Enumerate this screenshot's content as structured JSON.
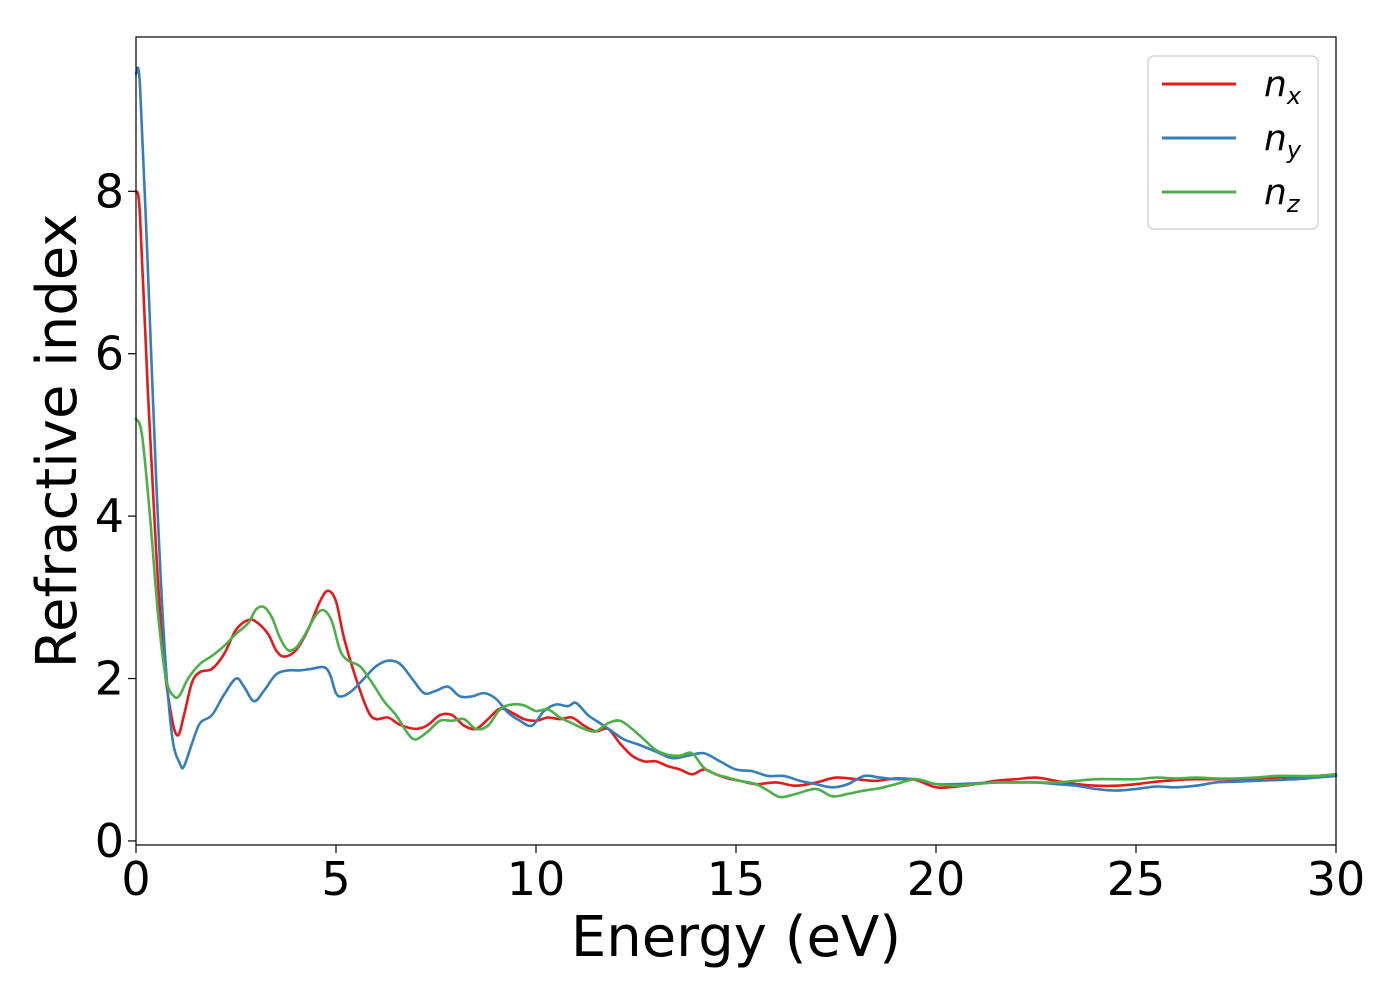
{
  "chart_data": {
    "type": "line",
    "title": "",
    "xlabel": "Energy (eV)",
    "ylabel": "Refractive index",
    "xlim": [
      0,
      30
    ],
    "ylim": [
      -0.05,
      9.9
    ],
    "xticks": [
      0,
      5,
      10,
      15,
      20,
      25,
      30
    ],
    "yticks": [
      0,
      2,
      4,
      6,
      8
    ],
    "grid": false,
    "legend_position": "top-right",
    "series": [
      {
        "name": "n_x",
        "label_base": "n",
        "label_sub": "x",
        "color": "#e41a1c",
        "points": [
          [
            0,
            8.0
          ],
          [
            0.1,
            7.7
          ],
          [
            0.3,
            5.5
          ],
          [
            0.5,
            3.6
          ],
          [
            0.7,
            2.2
          ],
          [
            0.9,
            1.5
          ],
          [
            1.05,
            1.3
          ],
          [
            1.2,
            1.55
          ],
          [
            1.4,
            1.95
          ],
          [
            1.6,
            2.08
          ],
          [
            1.9,
            2.12
          ],
          [
            2.2,
            2.3
          ],
          [
            2.5,
            2.6
          ],
          [
            2.8,
            2.72
          ],
          [
            3.0,
            2.7
          ],
          [
            3.3,
            2.55
          ],
          [
            3.5,
            2.35
          ],
          [
            3.7,
            2.27
          ],
          [
            4.0,
            2.35
          ],
          [
            4.3,
            2.6
          ],
          [
            4.6,
            2.95
          ],
          [
            4.8,
            3.08
          ],
          [
            5.0,
            2.95
          ],
          [
            5.2,
            2.5
          ],
          [
            5.5,
            2.0
          ],
          [
            5.8,
            1.6
          ],
          [
            6.0,
            1.5
          ],
          [
            6.3,
            1.52
          ],
          [
            6.6,
            1.43
          ],
          [
            7.0,
            1.38
          ],
          [
            7.3,
            1.43
          ],
          [
            7.6,
            1.55
          ],
          [
            7.9,
            1.55
          ],
          [
            8.2,
            1.42
          ],
          [
            8.5,
            1.38
          ],
          [
            8.8,
            1.5
          ],
          [
            9.1,
            1.63
          ],
          [
            9.4,
            1.58
          ],
          [
            9.7,
            1.5
          ],
          [
            10.0,
            1.48
          ],
          [
            10.3,
            1.52
          ],
          [
            10.6,
            1.5
          ],
          [
            10.9,
            1.52
          ],
          [
            11.2,
            1.42
          ],
          [
            11.5,
            1.35
          ],
          [
            11.8,
            1.38
          ],
          [
            12.1,
            1.2
          ],
          [
            12.4,
            1.05
          ],
          [
            12.7,
            0.98
          ],
          [
            13.0,
            0.98
          ],
          [
            13.3,
            0.92
          ],
          [
            13.6,
            0.88
          ],
          [
            13.9,
            0.82
          ],
          [
            14.2,
            0.88
          ],
          [
            14.5,
            0.82
          ],
          [
            14.8,
            0.77
          ],
          [
            15.1,
            0.74
          ],
          [
            15.5,
            0.7
          ],
          [
            16.0,
            0.72
          ],
          [
            16.5,
            0.68
          ],
          [
            17.0,
            0.72
          ],
          [
            17.5,
            0.78
          ],
          [
            18.0,
            0.76
          ],
          [
            18.5,
            0.74
          ],
          [
            19.0,
            0.77
          ],
          [
            19.5,
            0.75
          ],
          [
            20.0,
            0.66
          ],
          [
            20.5,
            0.67
          ],
          [
            21.0,
            0.7
          ],
          [
            21.5,
            0.74
          ],
          [
            22.0,
            0.76
          ],
          [
            22.5,
            0.78
          ],
          [
            23.0,
            0.74
          ],
          [
            23.5,
            0.7
          ],
          [
            24.0,
            0.68
          ],
          [
            24.5,
            0.68
          ],
          [
            25.0,
            0.7
          ],
          [
            25.5,
            0.73
          ],
          [
            26.0,
            0.75
          ],
          [
            26.5,
            0.76
          ],
          [
            27.0,
            0.76
          ],
          [
            27.5,
            0.76
          ],
          [
            28.0,
            0.77
          ],
          [
            28.5,
            0.78
          ],
          [
            29.0,
            0.79
          ],
          [
            29.5,
            0.8
          ],
          [
            30.0,
            0.82
          ]
        ]
      },
      {
        "name": "n_y",
        "label_base": "n",
        "label_sub": "y",
        "color": "#377eb8",
        "points": [
          [
            0,
            9.45
          ],
          [
            0.1,
            9.3
          ],
          [
            0.3,
            7.0
          ],
          [
            0.5,
            4.5
          ],
          [
            0.7,
            2.5
          ],
          [
            0.9,
            1.3
          ],
          [
            1.1,
            0.95
          ],
          [
            1.2,
            0.92
          ],
          [
            1.4,
            1.2
          ],
          [
            1.6,
            1.45
          ],
          [
            1.9,
            1.55
          ],
          [
            2.2,
            1.8
          ],
          [
            2.5,
            2.0
          ],
          [
            2.7,
            1.9
          ],
          [
            2.95,
            1.72
          ],
          [
            3.2,
            1.85
          ],
          [
            3.5,
            2.05
          ],
          [
            3.8,
            2.1
          ],
          [
            4.1,
            2.1
          ],
          [
            4.4,
            2.12
          ],
          [
            4.7,
            2.14
          ],
          [
            4.85,
            2.05
          ],
          [
            5.0,
            1.82
          ],
          [
            5.15,
            1.78
          ],
          [
            5.4,
            1.85
          ],
          [
            5.7,
            2.0
          ],
          [
            6.0,
            2.15
          ],
          [
            6.3,
            2.22
          ],
          [
            6.6,
            2.18
          ],
          [
            6.9,
            2.0
          ],
          [
            7.2,
            1.82
          ],
          [
            7.5,
            1.85
          ],
          [
            7.8,
            1.9
          ],
          [
            8.1,
            1.78
          ],
          [
            8.4,
            1.78
          ],
          [
            8.7,
            1.82
          ],
          [
            9.0,
            1.75
          ],
          [
            9.3,
            1.58
          ],
          [
            9.6,
            1.48
          ],
          [
            9.9,
            1.42
          ],
          [
            10.2,
            1.6
          ],
          [
            10.5,
            1.68
          ],
          [
            10.8,
            1.66
          ],
          [
            11.0,
            1.7
          ],
          [
            11.3,
            1.55
          ],
          [
            11.6,
            1.45
          ],
          [
            11.9,
            1.35
          ],
          [
            12.2,
            1.25
          ],
          [
            12.6,
            1.18
          ],
          [
            13.0,
            1.1
          ],
          [
            13.4,
            1.02
          ],
          [
            13.8,
            1.05
          ],
          [
            14.2,
            1.08
          ],
          [
            14.6,
            0.98
          ],
          [
            15.0,
            0.88
          ],
          [
            15.4,
            0.86
          ],
          [
            15.8,
            0.8
          ],
          [
            16.2,
            0.8
          ],
          [
            16.6,
            0.74
          ],
          [
            17.0,
            0.7
          ],
          [
            17.4,
            0.66
          ],
          [
            17.8,
            0.7
          ],
          [
            18.2,
            0.8
          ],
          [
            18.6,
            0.78
          ],
          [
            19.0,
            0.76
          ],
          [
            19.5,
            0.76
          ],
          [
            20.0,
            0.7
          ],
          [
            20.5,
            0.7
          ],
          [
            21.0,
            0.71
          ],
          [
            21.5,
            0.72
          ],
          [
            22.0,
            0.72
          ],
          [
            22.5,
            0.72
          ],
          [
            23.0,
            0.7
          ],
          [
            23.5,
            0.68
          ],
          [
            24.0,
            0.64
          ],
          [
            24.5,
            0.62
          ],
          [
            25.0,
            0.64
          ],
          [
            25.5,
            0.67
          ],
          [
            26.0,
            0.66
          ],
          [
            26.5,
            0.68
          ],
          [
            27.0,
            0.72
          ],
          [
            27.5,
            0.73
          ],
          [
            28.0,
            0.74
          ],
          [
            28.5,
            0.75
          ],
          [
            29.0,
            0.76
          ],
          [
            29.5,
            0.78
          ],
          [
            30.0,
            0.8
          ]
        ]
      },
      {
        "name": "n_z",
        "label_base": "n",
        "label_sub": "z",
        "color": "#4daf4a",
        "points": [
          [
            0,
            5.2
          ],
          [
            0.15,
            5.0
          ],
          [
            0.35,
            4.0
          ],
          [
            0.55,
            2.8
          ],
          [
            0.75,
            2.0
          ],
          [
            0.95,
            1.78
          ],
          [
            1.1,
            1.8
          ],
          [
            1.3,
            2.0
          ],
          [
            1.6,
            2.18
          ],
          [
            1.9,
            2.28
          ],
          [
            2.2,
            2.4
          ],
          [
            2.5,
            2.55
          ],
          [
            2.8,
            2.68
          ],
          [
            3.0,
            2.85
          ],
          [
            3.2,
            2.88
          ],
          [
            3.4,
            2.75
          ],
          [
            3.6,
            2.5
          ],
          [
            3.8,
            2.35
          ],
          [
            4.0,
            2.38
          ],
          [
            4.2,
            2.52
          ],
          [
            4.5,
            2.78
          ],
          [
            4.7,
            2.84
          ],
          [
            4.9,
            2.7
          ],
          [
            5.1,
            2.35
          ],
          [
            5.3,
            2.22
          ],
          [
            5.6,
            2.15
          ],
          [
            5.9,
            1.95
          ],
          [
            6.2,
            1.72
          ],
          [
            6.5,
            1.55
          ],
          [
            6.8,
            1.32
          ],
          [
            7.0,
            1.25
          ],
          [
            7.3,
            1.35
          ],
          [
            7.6,
            1.48
          ],
          [
            7.9,
            1.48
          ],
          [
            8.2,
            1.5
          ],
          [
            8.5,
            1.38
          ],
          [
            8.8,
            1.42
          ],
          [
            9.1,
            1.62
          ],
          [
            9.4,
            1.68
          ],
          [
            9.7,
            1.67
          ],
          [
            10.0,
            1.6
          ],
          [
            10.3,
            1.62
          ],
          [
            10.6,
            1.52
          ],
          [
            10.9,
            1.45
          ],
          [
            11.2,
            1.38
          ],
          [
            11.5,
            1.35
          ],
          [
            11.8,
            1.45
          ],
          [
            12.1,
            1.48
          ],
          [
            12.4,
            1.38
          ],
          [
            12.7,
            1.25
          ],
          [
            13.0,
            1.12
          ],
          [
            13.3,
            1.06
          ],
          [
            13.6,
            1.05
          ],
          [
            13.9,
            1.08
          ],
          [
            14.2,
            0.9
          ],
          [
            14.5,
            0.82
          ],
          [
            14.8,
            0.78
          ],
          [
            15.1,
            0.74
          ],
          [
            15.5,
            0.7
          ],
          [
            15.8,
            0.62
          ],
          [
            16.1,
            0.54
          ],
          [
            16.5,
            0.58
          ],
          [
            17.0,
            0.64
          ],
          [
            17.4,
            0.55
          ],
          [
            17.8,
            0.58
          ],
          [
            18.2,
            0.62
          ],
          [
            18.6,
            0.65
          ],
          [
            19.0,
            0.7
          ],
          [
            19.5,
            0.76
          ],
          [
            20.0,
            0.7
          ],
          [
            20.5,
            0.68
          ],
          [
            21.0,
            0.7
          ],
          [
            21.5,
            0.72
          ],
          [
            22.0,
            0.72
          ],
          [
            22.5,
            0.72
          ],
          [
            23.0,
            0.72
          ],
          [
            23.5,
            0.74
          ],
          [
            24.0,
            0.76
          ],
          [
            24.5,
            0.76
          ],
          [
            25.0,
            0.76
          ],
          [
            25.5,
            0.78
          ],
          [
            26.0,
            0.77
          ],
          [
            26.5,
            0.78
          ],
          [
            27.0,
            0.77
          ],
          [
            27.5,
            0.77
          ],
          [
            28.0,
            0.78
          ],
          [
            28.5,
            0.8
          ],
          [
            29.0,
            0.8
          ],
          [
            29.5,
            0.8
          ],
          [
            30.0,
            0.82
          ]
        ]
      }
    ]
  }
}
